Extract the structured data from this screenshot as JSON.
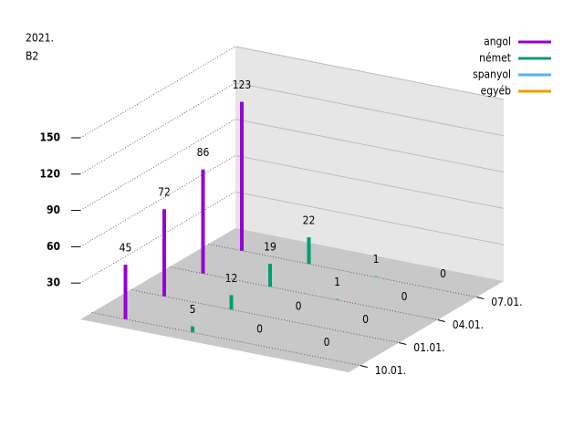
{
  "chart_data": {
    "type": "bar3d",
    "title": [
      "2021.",
      "B2"
    ],
    "categories": [
      "10.01.",
      "01.01.",
      "04.01.",
      "07.01."
    ],
    "series": [
      {
        "name": "angol",
        "color": "#9400d3",
        "values": [
          45,
          72,
          86,
          123
        ]
      },
      {
        "name": "német",
        "color": "#009e73",
        "values": [
          5,
          12,
          19,
          22
        ]
      },
      {
        "name": "spanyol",
        "color": "#56b4e9",
        "values": [
          0,
          0,
          1,
          1
        ]
      },
      {
        "name": "egyéb",
        "color": "#e69f00",
        "values": [
          0,
          0,
          0,
          0
        ]
      }
    ],
    "zlim": [
      0,
      150
    ],
    "zticks": [
      30,
      60,
      90,
      120,
      150
    ],
    "grid": true,
    "legend": "top-right"
  }
}
